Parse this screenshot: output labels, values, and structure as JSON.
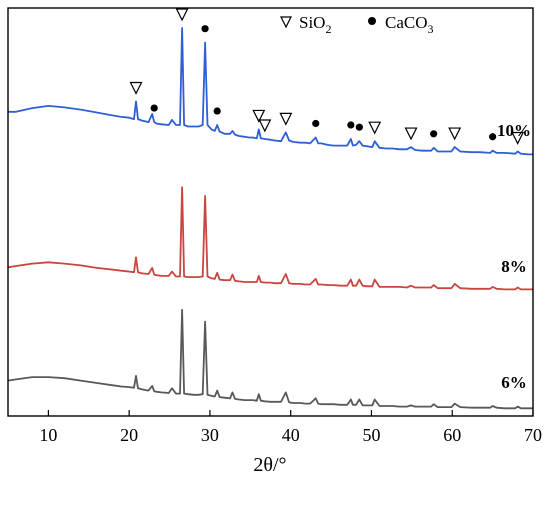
{
  "chart_data": {
    "type": "line",
    "xlabel": "2θ/°",
    "ylabel": "",
    "xlim": [
      5,
      70
    ],
    "xticks": [
      10,
      20,
      30,
      40,
      50,
      60,
      70
    ],
    "y_ticks_shown": false,
    "legend": {
      "placement": "top-right",
      "entries": [
        {
          "marker": "open-down-triangle",
          "label": "SiO",
          "subscript": "2"
        },
        {
          "marker": "filled-circle",
          "label": "CaCO",
          "subscript": "3"
        }
      ]
    },
    "series": [
      {
        "name": "10%",
        "color": "#2e5fd6",
        "x": [
          5,
          6,
          8,
          10,
          12,
          14,
          16,
          18,
          19,
          20,
          20.6,
          20.85,
          21.1,
          21.6,
          22.4,
          22.85,
          23.1,
          23.4,
          24,
          24.9,
          25.3,
          25.8,
          26.3,
          26.55,
          26.8,
          27.3,
          28,
          28.6,
          29.1,
          29.4,
          29.7,
          30.2,
          30.6,
          30.9,
          31.2,
          31.8,
          32.5,
          32.8,
          33.1,
          33.6,
          34.3,
          34.8,
          35.3,
          35.8,
          36.05,
          36.3,
          36.8,
          37.5,
          38,
          38.8,
          39.4,
          39.8,
          40.3,
          41.2,
          41.8,
          42.4,
          43.1,
          43.4,
          43.8,
          44.6,
          45.3,
          46.2,
          47,
          47.45,
          47.7,
          48.1,
          48.5,
          48.9,
          49.5,
          50.1,
          50.4,
          51,
          51.8,
          52.6,
          53.5,
          54.4,
          54.9,
          55.4,
          56.3,
          57.4,
          57.7,
          58.2,
          59,
          59.9,
          60.3,
          61,
          62.4,
          63.5,
          64.7,
          65,
          65.5,
          66.5,
          67.8,
          68.1,
          68.5,
          69.4,
          70
        ],
        "y": [
          0.43,
          0.43,
          0.455,
          0.47,
          0.46,
          0.445,
          0.425,
          0.405,
          0.395,
          0.39,
          0.38,
          0.5,
          0.38,
          0.37,
          0.36,
          0.415,
          0.36,
          0.35,
          0.345,
          0.34,
          0.375,
          0.34,
          0.34,
          1.0,
          0.34,
          0.33,
          0.33,
          0.33,
          0.34,
          0.9,
          0.34,
          0.31,
          0.3,
          0.34,
          0.295,
          0.28,
          0.28,
          0.3,
          0.275,
          0.265,
          0.26,
          0.255,
          0.255,
          0.25,
          0.31,
          0.25,
          0.245,
          0.24,
          0.235,
          0.23,
          0.29,
          0.235,
          0.225,
          0.22,
          0.22,
          0.215,
          0.255,
          0.215,
          0.215,
          0.205,
          0.2,
          0.2,
          0.2,
          0.245,
          0.2,
          0.205,
          0.23,
          0.2,
          0.195,
          0.19,
          0.23,
          0.185,
          0.18,
          0.18,
          0.175,
          0.175,
          0.19,
          0.17,
          0.165,
          0.165,
          0.185,
          0.16,
          0.16,
          0.16,
          0.19,
          0.16,
          0.155,
          0.155,
          0.15,
          0.165,
          0.15,
          0.15,
          0.145,
          0.16,
          0.145,
          0.14,
          0.14
        ]
      },
      {
        "name": "8%",
        "color": "#c8463f",
        "x": [
          5,
          6,
          8,
          10,
          12,
          14,
          16,
          18,
          19,
          20,
          20.6,
          20.85,
          21.1,
          21.6,
          22.4,
          22.85,
          23.1,
          23.4,
          24,
          24.9,
          25.3,
          25.8,
          26.3,
          26.55,
          26.8,
          27.3,
          28,
          28.6,
          29.1,
          29.4,
          29.7,
          30.2,
          30.6,
          30.9,
          31.2,
          31.8,
          32.5,
          32.8,
          33.1,
          33.6,
          34.3,
          34.8,
          35.3,
          35.8,
          36.05,
          36.3,
          36.8,
          37.5,
          38,
          38.8,
          39.4,
          39.8,
          40.3,
          41.2,
          41.8,
          42.4,
          43.1,
          43.4,
          43.8,
          44.6,
          45.3,
          46.2,
          47,
          47.45,
          47.7,
          48.1,
          48.5,
          48.9,
          49.5,
          50.1,
          50.4,
          51,
          51.8,
          52.6,
          53.5,
          54.4,
          54.9,
          55.4,
          56.3,
          57.4,
          57.7,
          58.2,
          59,
          59.9,
          60.3,
          61,
          62.4,
          63.5,
          64.7,
          65,
          65.5,
          66.5,
          67.8,
          68.1,
          68.5,
          69.4,
          70
        ],
        "y": [
          0.25,
          0.26,
          0.28,
          0.29,
          0.28,
          0.265,
          0.245,
          0.23,
          0.222,
          0.215,
          0.21,
          0.33,
          0.21,
          0.2,
          0.195,
          0.245,
          0.19,
          0.185,
          0.18,
          0.18,
          0.215,
          0.175,
          0.175,
          0.9,
          0.175,
          0.17,
          0.17,
          0.17,
          0.175,
          0.83,
          0.175,
          0.16,
          0.155,
          0.205,
          0.15,
          0.145,
          0.145,
          0.19,
          0.14,
          0.135,
          0.13,
          0.13,
          0.13,
          0.13,
          0.18,
          0.13,
          0.125,
          0.125,
          0.12,
          0.12,
          0.195,
          0.12,
          0.115,
          0.115,
          0.11,
          0.11,
          0.155,
          0.11,
          0.11,
          0.105,
          0.105,
          0.1,
          0.1,
          0.15,
          0.1,
          0.1,
          0.15,
          0.1,
          0.095,
          0.095,
          0.15,
          0.09,
          0.09,
          0.09,
          0.09,
          0.085,
          0.1,
          0.085,
          0.085,
          0.085,
          0.105,
          0.08,
          0.08,
          0.08,
          0.115,
          0.08,
          0.075,
          0.075,
          0.075,
          0.09,
          0.075,
          0.07,
          0.07,
          0.085,
          0.07,
          0.07,
          0.07
        ]
      },
      {
        "name": "6%",
        "color": "#595959",
        "x": [
          5,
          6,
          8,
          10,
          12,
          14,
          16,
          18,
          19,
          20,
          20.6,
          20.85,
          21.1,
          21.6,
          22.4,
          22.85,
          23.1,
          23.4,
          24,
          24.9,
          25.3,
          25.8,
          26.3,
          26.55,
          26.8,
          27.3,
          28,
          28.6,
          29.1,
          29.4,
          29.7,
          30.2,
          30.6,
          30.9,
          31.2,
          31.8,
          32.5,
          32.8,
          33.1,
          33.6,
          34.3,
          34.8,
          35.3,
          35.8,
          36.05,
          36.3,
          36.8,
          37.5,
          38,
          38.8,
          39.4,
          39.8,
          40.3,
          41.2,
          41.8,
          42.4,
          43.1,
          43.4,
          43.8,
          44.6,
          45.3,
          46.2,
          47,
          47.45,
          47.7,
          48.1,
          48.5,
          48.9,
          49.5,
          50.1,
          50.4,
          51,
          51.8,
          52.6,
          53.5,
          54.4,
          54.9,
          55.4,
          56.3,
          57.4,
          57.7,
          58.2,
          59,
          59.9,
          60.3,
          61,
          62.4,
          63.5,
          64.7,
          65,
          65.5,
          66.5,
          67.8,
          68.1,
          68.5,
          69.4,
          70
        ],
        "y": [
          0.3,
          0.31,
          0.33,
          0.33,
          0.32,
          0.3,
          0.28,
          0.26,
          0.25,
          0.245,
          0.24,
          0.34,
          0.235,
          0.225,
          0.215,
          0.255,
          0.21,
          0.205,
          0.2,
          0.195,
          0.235,
          0.19,
          0.19,
          0.9,
          0.19,
          0.185,
          0.18,
          0.18,
          0.185,
          0.8,
          0.18,
          0.17,
          0.165,
          0.215,
          0.16,
          0.155,
          0.15,
          0.2,
          0.145,
          0.14,
          0.135,
          0.135,
          0.135,
          0.13,
          0.185,
          0.13,
          0.125,
          0.12,
          0.12,
          0.12,
          0.2,
          0.115,
          0.11,
          0.11,
          0.105,
          0.105,
          0.15,
          0.105,
          0.1,
          0.1,
          0.1,
          0.095,
          0.095,
          0.14,
          0.095,
          0.095,
          0.14,
          0.09,
          0.09,
          0.09,
          0.14,
          0.085,
          0.085,
          0.085,
          0.08,
          0.08,
          0.09,
          0.08,
          0.08,
          0.08,
          0.1,
          0.075,
          0.075,
          0.075,
          0.105,
          0.075,
          0.07,
          0.07,
          0.07,
          0.085,
          0.07,
          0.065,
          0.065,
          0.08,
          0.065,
          0.065,
          0.065
        ]
      }
    ],
    "annotations": [
      {
        "series": "10%",
        "marker": "open-down-triangle",
        "x": [
          20.85,
          26.55,
          36.05,
          36.8,
          39.4,
          50.4,
          54.9,
          60.3,
          68.1
        ]
      },
      {
        "series": "10%",
        "marker": "filled-circle",
        "x": [
          23.1,
          29.4,
          30.9,
          43.1,
          47.45,
          48.5,
          57.7,
          65
        ]
      }
    ]
  }
}
